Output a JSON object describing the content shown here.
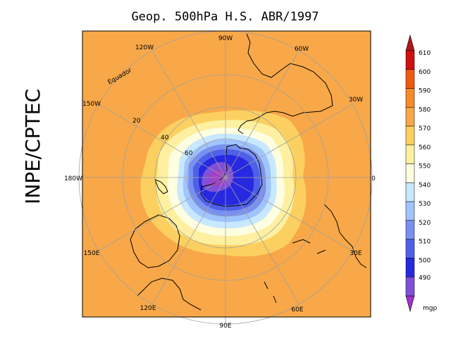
{
  "title": "Geop. 500hPa H.S. ABR/1997",
  "side_label": "INPE/CPTEC",
  "longitude_labels": [
    "90W",
    "60W",
    "30W",
    "0",
    "30E",
    "60E",
    "90E",
    "120E",
    "150E",
    "180W",
    "150W",
    "120W"
  ],
  "latitude_labels": [
    "20",
    "40",
    "60"
  ],
  "equator_label": "Equador",
  "colorbar": {
    "unit": "mgp",
    "levels": [
      "610",
      "600",
      "590",
      "580",
      "570",
      "560",
      "550",
      "540",
      "530",
      "520",
      "510",
      "500",
      "490"
    ],
    "colors": [
      "#d01010",
      "#f05a10",
      "#f58a28",
      "#f8a848",
      "#fcd060",
      "#fef0a0",
      "#fefee0",
      "#c8e8ff",
      "#a0c4ff",
      "#7890f0",
      "#4f60e8",
      "#2828e0",
      "#8050d8"
    ],
    "top_color": "#b01818",
    "bottom_color": "#a030d0"
  },
  "colors": {
    "outer_field": "#f8a848",
    "core": "#2828e0",
    "center": "#a040c8",
    "coast": "#000000",
    "grid": "#a0a0a0"
  }
}
